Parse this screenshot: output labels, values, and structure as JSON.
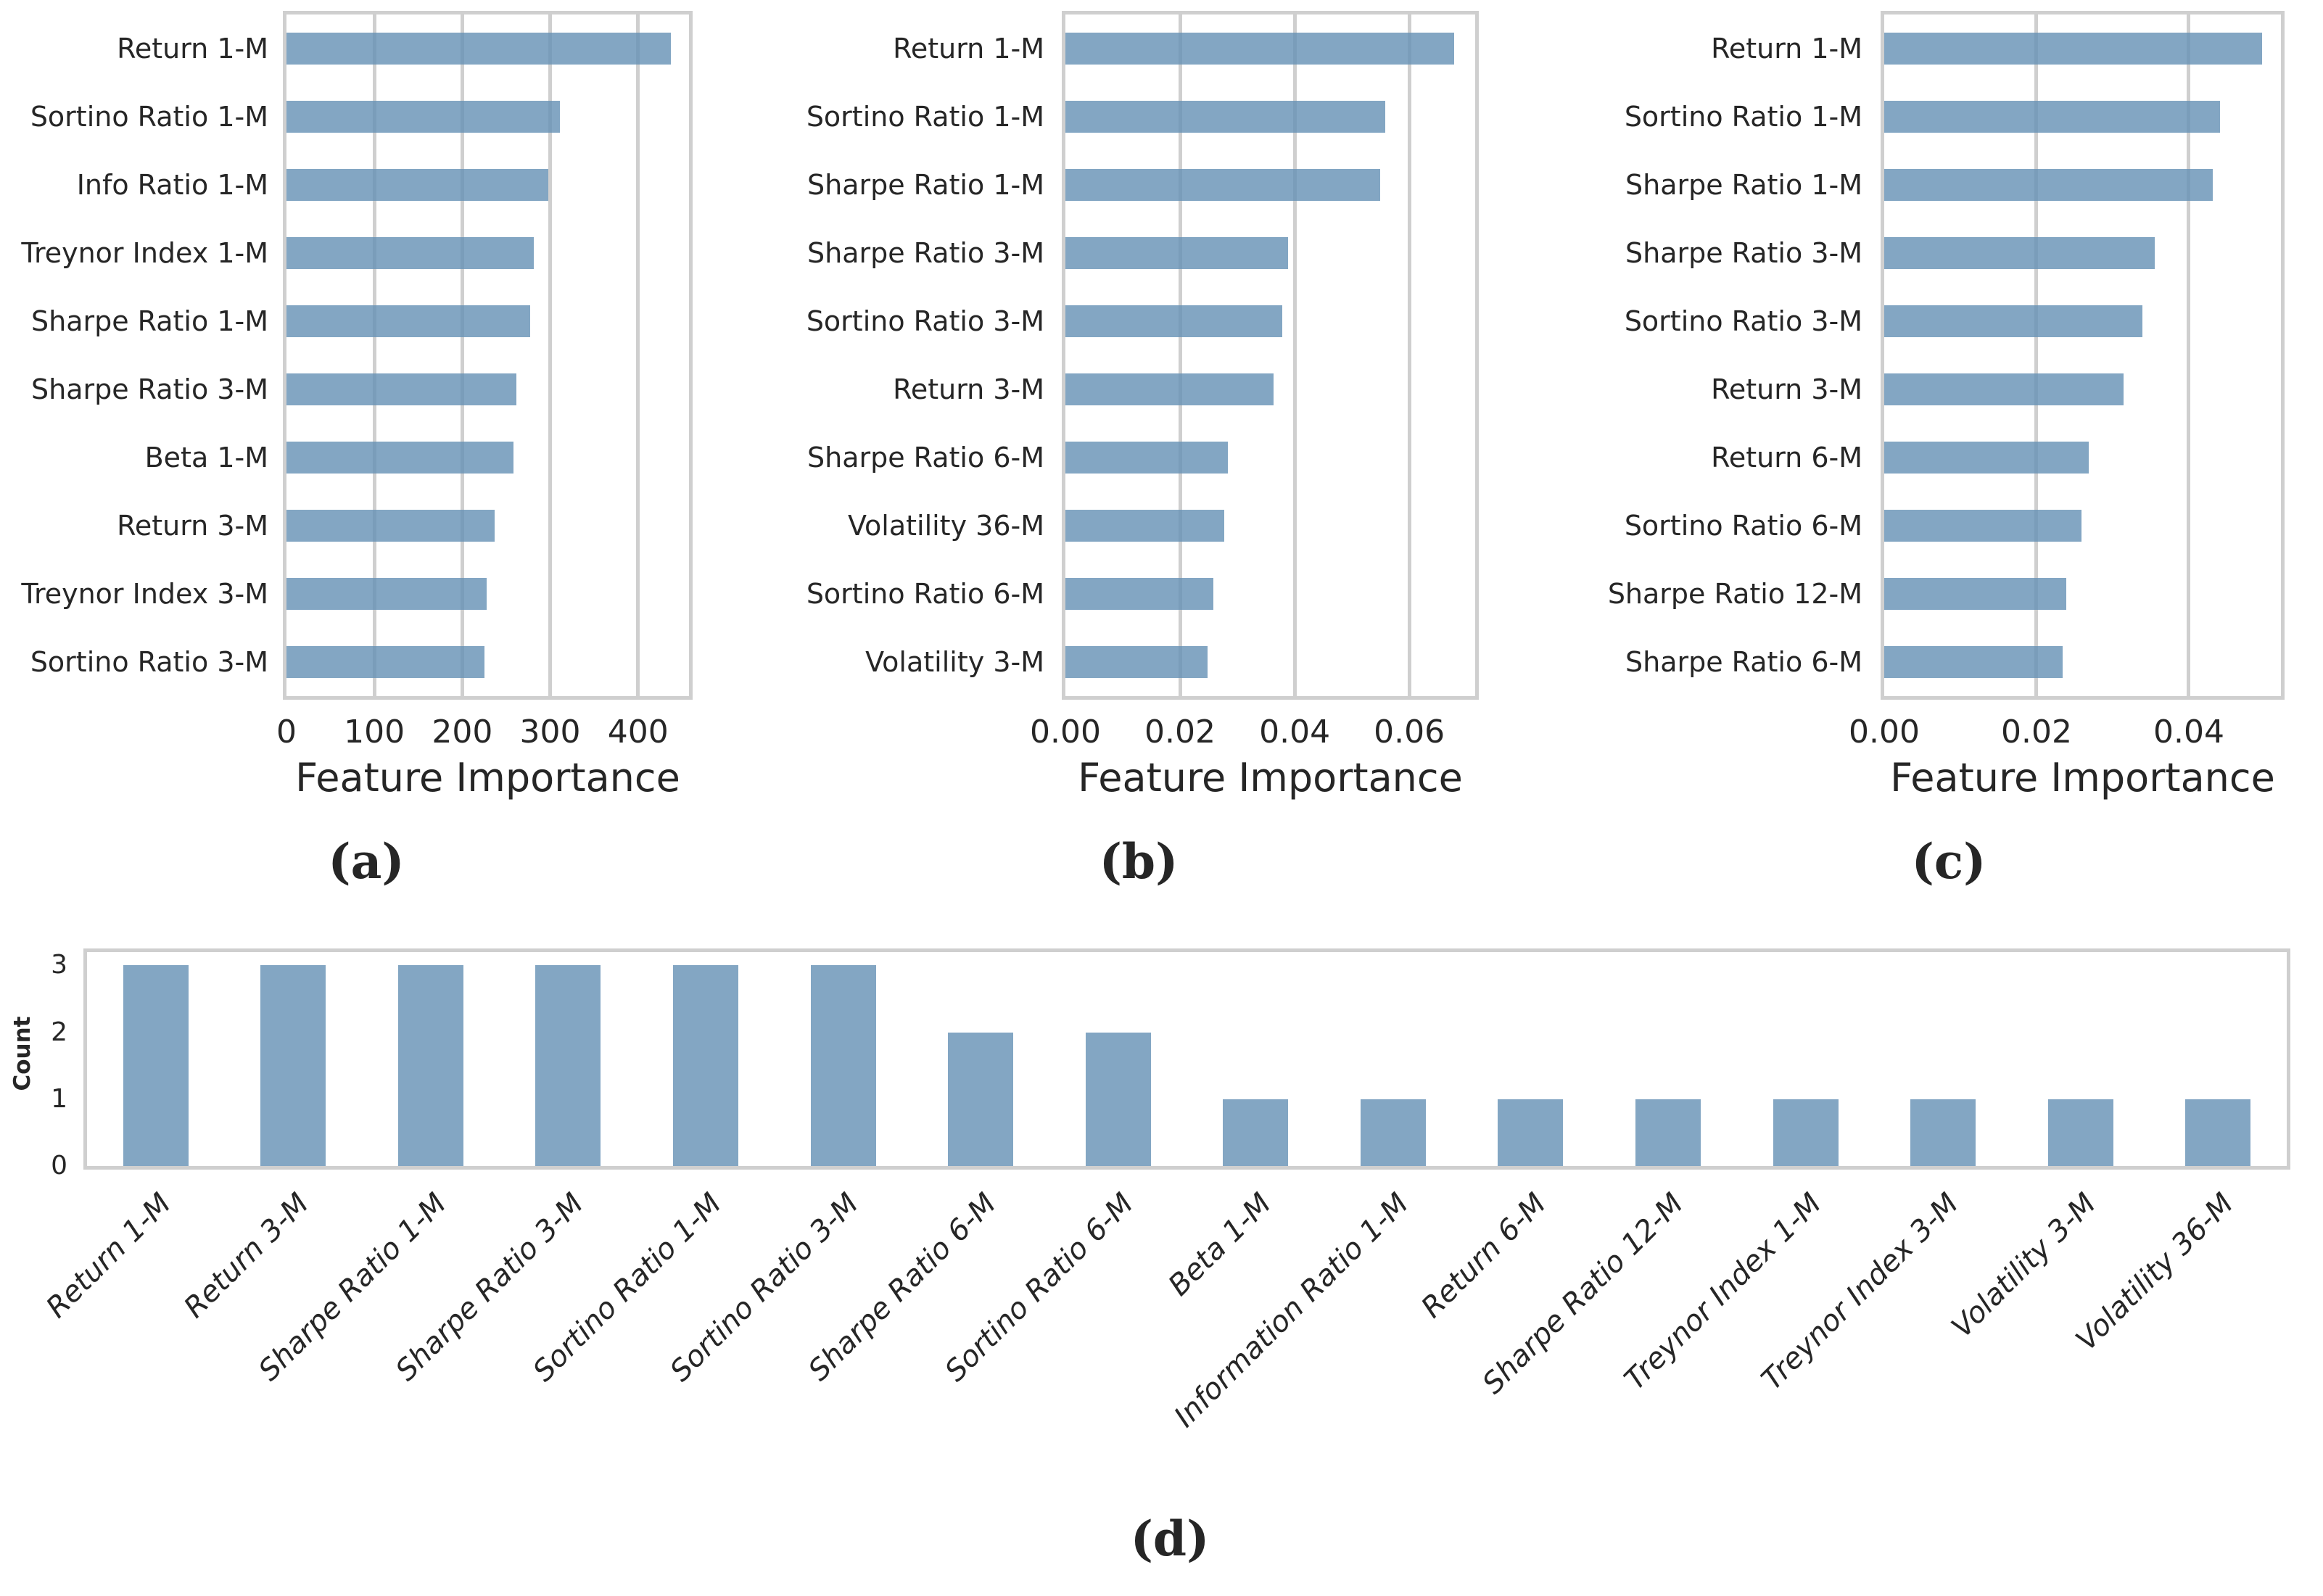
{
  "figure": {
    "background": "#ffffff",
    "bar_color": "#6490b4",
    "bar_alpha": 0.8,
    "grid_color": "#cfcfcf",
    "border_color": "#cfcfcf",
    "text_color": "#262626"
  },
  "chart_data": [
    {
      "id": "a",
      "type": "bar",
      "orientation": "horizontal",
      "caption": "(a)",
      "xlabel": "Feature Importance",
      "categories": [
        "Return 1-M",
        "Sortino Ratio 1-M",
        "Info Ratio 1-M",
        "Treynor Index 1-M",
        "Sharpe Ratio 1-M",
        "Sharpe Ratio 3-M",
        "Beta 1-M",
        "Return 3-M",
        "Treynor Index 3-M",
        "Sortino Ratio 3-M"
      ],
      "values": [
        437,
        311,
        298,
        281,
        277,
        262,
        258,
        237,
        228,
        225
      ],
      "xlim": [
        0,
        458
      ],
      "xticks": [
        0,
        100,
        200,
        300,
        400
      ],
      "xtick_labels": [
        "0",
        "100",
        "200",
        "300",
        "400"
      ],
      "grid": "vertical",
      "legend": "none"
    },
    {
      "id": "b",
      "type": "bar",
      "orientation": "horizontal",
      "caption": "(b)",
      "xlabel": "Feature Importance",
      "categories": [
        "Return 1-M",
        "Sortino Ratio 1-M",
        "Sharpe Ratio 1-M",
        "Sharpe Ratio 3-M",
        "Sortino Ratio 3-M",
        "Return 3-M",
        "Sharpe Ratio 6-M",
        "Volatility 36-M",
        "Sortino Ratio 6-M",
        "Volatility 3-M"
      ],
      "values": [
        0.0678,
        0.0558,
        0.0549,
        0.0388,
        0.0378,
        0.0363,
        0.0283,
        0.0277,
        0.0258,
        0.0248
      ],
      "xlim": [
        0,
        0.0715
      ],
      "xticks": [
        0,
        0.02,
        0.04,
        0.06
      ],
      "xtick_labels": [
        "0.00",
        "0.02",
        "0.04",
        "0.06"
      ],
      "grid": "vertical",
      "legend": "none"
    },
    {
      "id": "c",
      "type": "bar",
      "orientation": "horizontal",
      "caption": "(c)",
      "xlabel": "Feature Importance",
      "categories": [
        "Return 1-M",
        "Sortino Ratio 1-M",
        "Sharpe Ratio 1-M",
        "Sharpe Ratio 3-M",
        "Sortino Ratio 3-M",
        "Return 3-M",
        "Return 6-M",
        "Sortino Ratio 6-M",
        "Sharpe Ratio 12-M",
        "Sharpe Ratio 6-M"
      ],
      "values": [
        0.0496,
        0.0441,
        0.0431,
        0.0355,
        0.0339,
        0.0314,
        0.0269,
        0.0259,
        0.0239,
        0.0234
      ],
      "xlim": [
        0,
        0.0521
      ],
      "xticks": [
        0,
        0.02,
        0.04
      ],
      "xtick_labels": [
        "0.00",
        "0.02",
        "0.04"
      ],
      "grid": "vertical",
      "legend": "none"
    },
    {
      "id": "d",
      "type": "bar",
      "orientation": "vertical",
      "caption": "(d)",
      "ylabel": "Count",
      "categories": [
        "Return 1-M",
        "Return 3-M",
        "Sharpe Ratio 1-M",
        "Sharpe Ratio 3-M",
        "Sortino Ratio 1-M",
        "Sortino Ratio 3-M",
        "Sharpe Ratio 6-M",
        "Sortino Ratio 6-M",
        "Beta 1-M",
        "Information Ratio 1-M",
        "Return 6-M",
        "Sharpe Ratio 12-M",
        "Treynor Index 1-M",
        "Treynor Index 3-M",
        "Volatility 3-M",
        "Volatility 36-M"
      ],
      "values": [
        3,
        3,
        3,
        3,
        3,
        3,
        2,
        2,
        1,
        1,
        1,
        1,
        1,
        1,
        1,
        1
      ],
      "ylim": [
        0,
        3.2
      ],
      "yticks": [
        0,
        1,
        2,
        3
      ],
      "ytick_labels": [
        "0",
        "1",
        "2",
        "3"
      ],
      "grid": "off",
      "legend": "none",
      "xtick_style": "italic, rotated 45"
    }
  ]
}
